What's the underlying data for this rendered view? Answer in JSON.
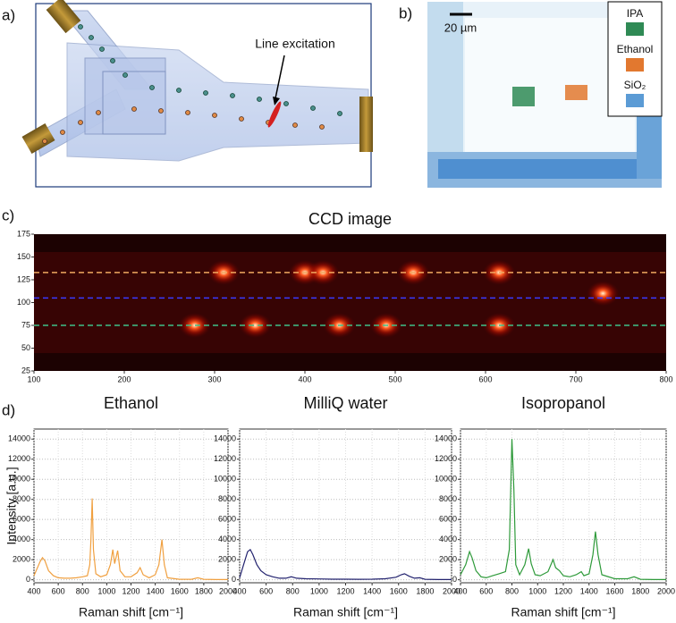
{
  "panel_labels": [
    "a)",
    "b)",
    "c)",
    "d)"
  ],
  "schematic": {
    "annotation": "Line excitation"
  },
  "microscope": {
    "scale_bar": "20 µm",
    "legend": [
      {
        "name": "IPA",
        "color": "#2f8a55"
      },
      {
        "name": "Ethanol",
        "color": "#e2782f"
      },
      {
        "name": "SiO₂",
        "color": "#5b9bd5"
      }
    ]
  },
  "chart_data": [
    {
      "type": "heatmap",
      "title": "CCD image",
      "xlim": [
        100,
        800
      ],
      "xticks": [
        100,
        200,
        300,
        400,
        500,
        600,
        700,
        800
      ],
      "ylim": [
        25,
        175
      ],
      "yticks": [
        25,
        50,
        75,
        100,
        125,
        150,
        175
      ],
      "guides": [
        {
          "y": 133,
          "color": "#f0a860"
        },
        {
          "y": 105,
          "color": "#3a3aff"
        },
        {
          "y": 75,
          "color": "#3fc28a"
        }
      ],
      "spots": {
        "x": [
          310,
          400,
          420,
          520,
          615,
          278,
          345,
          438,
          490,
          615,
          730
        ],
        "y": [
          133,
          133,
          133,
          133,
          133,
          75,
          75,
          75,
          75,
          75,
          110
        ]
      }
    },
    {
      "type": "line",
      "title": "Ethanol",
      "ylabel": "Intensity [a.u.]",
      "xlabel": "Raman shift [cm⁻¹]",
      "grid": true,
      "xlim": [
        400,
        2000
      ],
      "xticks": [
        400,
        600,
        800,
        1000,
        1200,
        1400,
        1600,
        1800,
        2000
      ],
      "ylim": [
        -300,
        15000
      ],
      "yticks": [
        0,
        2000,
        4000,
        6000,
        8000,
        10000,
        12000,
        14000
      ],
      "series": [
        {
          "color": "#f0a040",
          "x": [
            400,
            450,
            470,
            490,
            520,
            560,
            600,
            650,
            700,
            750,
            800,
            840,
            860,
            870,
            880,
            890,
            910,
            950,
            1000,
            1030,
            1050,
            1065,
            1090,
            1110,
            1150,
            1200,
            1250,
            1275,
            1300,
            1350,
            1400,
            1430,
            1455,
            1475,
            1500,
            1600,
            1700,
            1750,
            1800,
            1900,
            2000
          ],
          "values": [
            400,
            1800,
            2200,
            1900,
            900,
            400,
            200,
            150,
            150,
            200,
            300,
            400,
            1500,
            4000,
            8100,
            3000,
            600,
            300,
            500,
            1500,
            3000,
            1600,
            2900,
            900,
            300,
            300,
            700,
            1200,
            500,
            200,
            500,
            1500,
            4000,
            1500,
            200,
            50,
            50,
            200,
            50,
            20,
            20
          ]
        }
      ]
    },
    {
      "type": "line",
      "title": "MilliQ water",
      "xlabel": "Raman shift [cm⁻¹]",
      "grid": true,
      "xlim": [
        400,
        2000
      ],
      "xticks": [
        400,
        600,
        800,
        1000,
        1200,
        1400,
        1600,
        1800,
        2000
      ],
      "ylim": [
        -300,
        15000
      ],
      "yticks": [
        0,
        2000,
        4000,
        6000,
        8000,
        10000,
        12000,
        14000
      ],
      "series": [
        {
          "color": "#22226e",
          "x": [
            400,
            430,
            460,
            480,
            500,
            530,
            560,
            600,
            650,
            700,
            750,
            790,
            830,
            900,
            1000,
            1100,
            1200,
            1300,
            1400,
            1500,
            1580,
            1620,
            1645,
            1680,
            1720,
            1760,
            1800,
            1900,
            2000
          ],
          "values": [
            200,
            1500,
            2800,
            3000,
            2500,
            1500,
            900,
            500,
            300,
            150,
            150,
            300,
            150,
            100,
            80,
            60,
            60,
            50,
            60,
            100,
            250,
            500,
            600,
            350,
            150,
            200,
            50,
            20,
            20
          ]
        }
      ]
    },
    {
      "type": "line",
      "title": "Isopropanol",
      "xlabel": "Raman shift [cm⁻¹]",
      "grid": true,
      "xlim": [
        400,
        2000
      ],
      "xticks": [
        400,
        600,
        800,
        1000,
        1200,
        1400,
        1600,
        1800,
        2000
      ],
      "ylim": [
        -300,
        15000
      ],
      "yticks": [
        0,
        2000,
        4000,
        6000,
        8000,
        10000,
        12000,
        14000
      ],
      "series": [
        {
          "color": "#2e9a3a",
          "x": [
            400,
            440,
            470,
            490,
            520,
            560,
            600,
            650,
            700,
            750,
            780,
            800,
            815,
            830,
            860,
            900,
            930,
            950,
            980,
            1020,
            1080,
            1120,
            1140,
            1170,
            1200,
            1250,
            1300,
            1340,
            1360,
            1400,
            1430,
            1450,
            1470,
            1500,
            1600,
            1700,
            1750,
            1800,
            1900,
            2000
          ],
          "values": [
            500,
            1500,
            2800,
            2200,
            900,
            300,
            200,
            400,
            600,
            800,
            3000,
            14000,
            9000,
            1500,
            500,
            1500,
            3100,
            1600,
            500,
            400,
            800,
            2000,
            1200,
            900,
            400,
            300,
            500,
            800,
            400,
            600,
            2500,
            4800,
            2500,
            500,
            100,
            100,
            300,
            50,
            20,
            20
          ]
        }
      ]
    }
  ]
}
